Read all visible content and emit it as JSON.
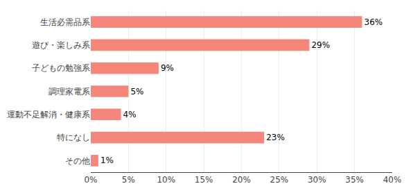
{
  "chart_data": {
    "type": "bar",
    "orientation": "horizontal",
    "categories": [
      "生活必需品系",
      "遊び・楽しみ系",
      "子どもの勉強系",
      "調理家電系",
      "運動不足解消・健康系",
      "特になし",
      "その他"
    ],
    "values": [
      36,
      29,
      9,
      5,
      4,
      23,
      1
    ],
    "value_labels": [
      "36%",
      "29%",
      "9%",
      "5%",
      "4%",
      "23%",
      "1%"
    ],
    "color": "#F4877A",
    "xlim": [
      0,
      40
    ],
    "xticks": [
      {
        "value": 0,
        "label": "0%"
      },
      {
        "value": 5,
        "label": "5%"
      },
      {
        "value": 10,
        "label": "10%"
      },
      {
        "value": 15,
        "label": "15%"
      },
      {
        "value": 20,
        "label": "20%"
      },
      {
        "value": 25,
        "label": "25%"
      },
      {
        "value": 30,
        "label": "30%"
      },
      {
        "value": 35,
        "label": "35%"
      },
      {
        "value": 40,
        "label": "40%"
      }
    ],
    "grid": true,
    "data_labels": true
  }
}
